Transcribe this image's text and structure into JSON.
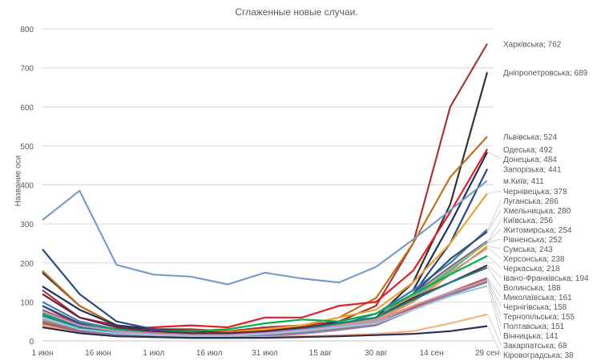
{
  "chart_data": {
    "type": "line",
    "title": "Сглаженные новые случаи.",
    "ylabel": "Название оси",
    "xlabel": "",
    "ylim": [
      0,
      800
    ],
    "yticks": [
      0,
      100,
      200,
      300,
      400,
      500,
      600,
      700,
      800
    ],
    "xticks": [
      "1 июн",
      "16 июн",
      "1 июл",
      "16 июл",
      "31 июл",
      "15 авг",
      "30 авг",
      "14 сен",
      "29 сен"
    ],
    "grid": "horizontal",
    "legend": "end-of-line labels",
    "x": [
      "1 июн",
      "11 июн",
      "21 июн",
      "1 июл",
      "11 июл",
      "21 июл",
      "31 июл",
      "10 авг",
      "20 авг",
      "30 авг",
      "9 сен",
      "19 сен",
      "29 сен"
    ],
    "series": [
      {
        "name": "Харківська",
        "end_label": "Харківська; 762",
        "color": "#a5373a",
        "values": [
          130,
          60,
          40,
          30,
          30,
          25,
          35,
          40,
          50,
          90,
          250,
          600,
          762
        ]
      },
      {
        "name": "Дніпропетровська",
        "end_label": "Дніпропетровська; 689",
        "color": "#333333",
        "values": [
          175,
          90,
          40,
          30,
          25,
          20,
          25,
          35,
          45,
          60,
          150,
          350,
          689
        ]
      },
      {
        "name": "Львівська",
        "end_label": "Львівська; 524",
        "color": "#c0701e",
        "values": [
          180,
          90,
          40,
          30,
          25,
          25,
          30,
          40,
          60,
          110,
          250,
          420,
          524
        ]
      },
      {
        "name": "Одеська",
        "end_label": "Одеська; 492",
        "color": "#e0202a",
        "values": [
          90,
          40,
          30,
          35,
          40,
          35,
          60,
          60,
          90,
          100,
          180,
          330,
          492
        ]
      },
      {
        "name": "Донецька",
        "end_label": "Донецька; 484",
        "color": "#203060",
        "values": [
          140,
          80,
          40,
          30,
          25,
          20,
          25,
          30,
          50,
          70,
          130,
          300,
          484
        ]
      },
      {
        "name": "Запорізька",
        "end_label": "Запорізька; 441",
        "color": "#2a4a80",
        "values": [
          235,
          120,
          50,
          30,
          20,
          20,
          20,
          30,
          40,
          60,
          120,
          250,
          441
        ]
      },
      {
        "name": "м.Київ",
        "end_label": "м.Київ; 411",
        "color": "#7c9cc8",
        "values": [
          310,
          385,
          195,
          170,
          165,
          145,
          175,
          160,
          150,
          190,
          260,
          335,
          411
        ]
      },
      {
        "name": "Чернівецька",
        "end_label": "Чернівецька; 378",
        "color": "#f0a030",
        "values": [
          60,
          30,
          20,
          20,
          20,
          20,
          30,
          40,
          60,
          80,
          150,
          250,
          378
        ]
      },
      {
        "name": "Луганська",
        "end_label": "Луганська; 286",
        "color": "#4a7ab0",
        "values": [
          100,
          50,
          30,
          20,
          15,
          15,
          20,
          30,
          40,
          70,
          130,
          200,
          286
        ]
      },
      {
        "name": "Хмельницька",
        "end_label": "Хмельницька; 280",
        "color": "#2f5070",
        "values": [
          90,
          45,
          25,
          15,
          10,
          10,
          15,
          20,
          30,
          55,
          120,
          210,
          280
        ]
      },
      {
        "name": "Київська",
        "end_label": "Київська; 256",
        "color": "#8064a2",
        "values": [
          80,
          40,
          25,
          20,
          15,
          15,
          20,
          30,
          40,
          60,
          120,
          190,
          256
        ]
      },
      {
        "name": "Житомирська",
        "end_label": "Житомирська; 254",
        "color": "#4bacc6",
        "values": [
          70,
          35,
          20,
          15,
          12,
          12,
          18,
          25,
          35,
          55,
          110,
          180,
          254
        ]
      },
      {
        "name": "Рівненська",
        "end_label": "Рівненська; 252",
        "color": "#9bbb59",
        "values": [
          60,
          30,
          20,
          15,
          12,
          12,
          18,
          25,
          40,
          60,
          115,
          185,
          252
        ]
      },
      {
        "name": "Сумська",
        "end_label": "Сумська; 243",
        "color": "#f79646",
        "values": [
          50,
          25,
          15,
          12,
          10,
          10,
          15,
          20,
          35,
          50,
          100,
          170,
          243
        ]
      },
      {
        "name": "Херсонська",
        "end_label": "Херсонська; 238",
        "color": "#c0a080",
        "values": [
          55,
          28,
          18,
          14,
          12,
          12,
          18,
          25,
          40,
          55,
          105,
          175,
          238
        ]
      },
      {
        "name": "Черкаська",
        "end_label": "Черкаська; 218",
        "color": "#00b050",
        "values": [
          70,
          40,
          30,
          25,
          25,
          30,
          45,
          55,
          50,
          70,
          120,
          170,
          218
        ]
      },
      {
        "name": "Івано-Франківська",
        "end_label": "Івано-Франківська; 194",
        "color": "#6a2040",
        "values": [
          120,
          60,
          35,
          25,
          20,
          20,
          25,
          35,
          45,
          60,
          110,
          150,
          194
        ]
      },
      {
        "name": "Волинська",
        "end_label": "Волинська; 188",
        "color": "#1f8080",
        "values": [
          65,
          35,
          22,
          18,
          15,
          15,
          20,
          30,
          45,
          60,
          105,
          150,
          188
        ]
      },
      {
        "name": "Миколаївська",
        "end_label": "Миколаївська; 161",
        "color": "#c0504d",
        "values": [
          45,
          25,
          15,
          12,
          10,
          10,
          15,
          20,
          30,
          45,
          85,
          125,
          161
        ]
      },
      {
        "name": "Чернігівська",
        "end_label": "Чернігівська; 158",
        "color": "#a080c0",
        "values": [
          40,
          22,
          14,
          10,
          8,
          8,
          12,
          18,
          28,
          40,
          80,
          120,
          158
        ]
      },
      {
        "name": "Тернопільська",
        "end_label": "Тернопільська; 155",
        "color": "#d090b0",
        "values": [
          75,
          40,
          25,
          18,
          15,
          15,
          20,
          28,
          38,
          50,
          90,
          125,
          155
        ]
      },
      {
        "name": "Полтавська",
        "end_label": "Полтавська; 151",
        "color": "#808080",
        "values": [
          50,
          28,
          18,
          14,
          12,
          12,
          16,
          22,
          30,
          42,
          80,
          118,
          151
        ]
      },
      {
        "name": "Вінницька",
        "end_label": "Вінницька; 141",
        "color": "#9dc3e6",
        "values": [
          60,
          30,
          20,
          15,
          12,
          12,
          18,
          25,
          35,
          45,
          80,
          115,
          141
        ]
      },
      {
        "name": "Закарпатська",
        "end_label": "Закарпатська; 68",
        "color": "#f4b183",
        "values": [
          40,
          20,
          12,
          10,
          8,
          8,
          10,
          12,
          15,
          18,
          25,
          45,
          68
        ]
      },
      {
        "name": "Кіровоградська",
        "end_label": "Кіровоградська; 38",
        "color": "#2e2e50",
        "values": [
          35,
          20,
          12,
          10,
          8,
          8,
          8,
          10,
          12,
          15,
          18,
          25,
          38
        ]
      }
    ]
  }
}
